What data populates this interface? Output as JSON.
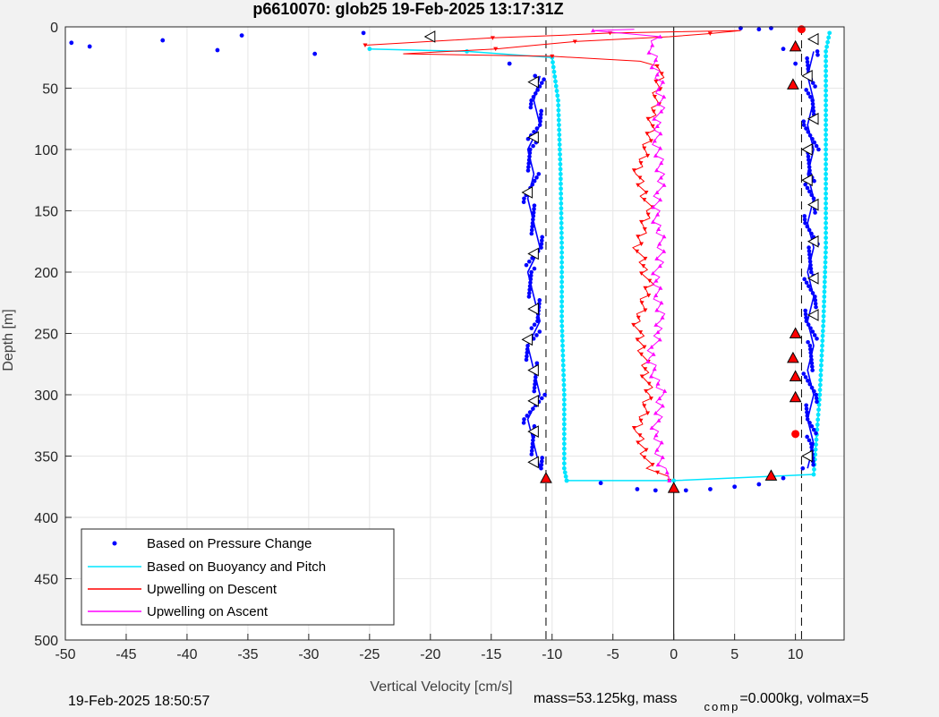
{
  "footer": {
    "timestamp": "19-Feb-2025 18:50:57",
    "mass_text": "mass=53.125kg, mass",
    "comp_sub": "comp",
    "comp_text": "=0.000kg, volmax=5"
  },
  "chart_data": {
    "type": "scatter",
    "title": "p6610070: glob25 19-Feb-2025 13:17:31Z",
    "xlabel": "Vertical Velocity [cm/s]",
    "ylabel": "Depth [m]",
    "xlim": [
      -50,
      14
    ],
    "ylim": [
      500,
      0
    ],
    "y_reversed": true,
    "grid": true,
    "xticks": [
      -50,
      -45,
      -40,
      -35,
      -30,
      -25,
      -20,
      -15,
      -10,
      -5,
      0,
      5,
      10
    ],
    "yticks": [
      0,
      50,
      100,
      150,
      200,
      250,
      300,
      350,
      400,
      450,
      500
    ],
    "reference_lines": [
      {
        "x": -10.5,
        "style": "dashed",
        "color": "#000000"
      },
      {
        "x": 10.5,
        "style": "dashed",
        "color": "#000000"
      },
      {
        "x": 0,
        "style": "solid",
        "color": "#000000"
      }
    ],
    "legend_position": "bottom-left",
    "series": [
      {
        "name": "Based on Pressure Change",
        "color": "#0000ff",
        "style": "dots",
        "descent": [
          [
            -11,
            40
          ],
          [
            -11.5,
            60
          ],
          [
            -11,
            80
          ],
          [
            -12,
            100
          ],
          [
            -11.5,
            120
          ],
          [
            -12,
            140
          ],
          [
            -11.5,
            160
          ],
          [
            -11,
            180
          ],
          [
            -12,
            200
          ],
          [
            -11.5,
            220
          ],
          [
            -11,
            240
          ],
          [
            -12,
            260
          ],
          [
            -11.5,
            280
          ],
          [
            -11,
            300
          ],
          [
            -12,
            320
          ],
          [
            -11.5,
            340
          ],
          [
            -11,
            360
          ]
        ],
        "ascent": [
          [
            11,
            360
          ],
          [
            11.5,
            340
          ],
          [
            11,
            320
          ],
          [
            11.5,
            300
          ],
          [
            11,
            280
          ],
          [
            11.5,
            260
          ],
          [
            11,
            240
          ],
          [
            11.5,
            220
          ],
          [
            11,
            200
          ],
          [
            11.5,
            180
          ],
          [
            11,
            160
          ],
          [
            11.5,
            140
          ],
          [
            11,
            120
          ],
          [
            11.5,
            100
          ],
          [
            11,
            80
          ],
          [
            11.5,
            60
          ],
          [
            11,
            40
          ],
          [
            11.5,
            20
          ]
        ],
        "outliers": [
          [
            -49.5,
            13
          ],
          [
            -48,
            16
          ],
          [
            -42,
            11
          ],
          [
            -37.5,
            19
          ],
          [
            -35.5,
            7
          ],
          [
            -29.5,
            22
          ],
          [
            -25.5,
            5
          ],
          [
            -13.5,
            30
          ],
          [
            -6,
            372
          ],
          [
            -3,
            377
          ],
          [
            -1.5,
            378
          ],
          [
            1,
            378
          ],
          [
            3,
            377
          ],
          [
            5,
            375
          ],
          [
            7,
            373
          ],
          [
            9,
            368
          ],
          [
            5.5,
            1
          ],
          [
            7,
            2
          ],
          [
            8,
            1
          ],
          [
            10,
            30
          ],
          [
            9,
            18
          ]
        ]
      },
      {
        "name": "Based on Buoyancy and Pitch",
        "color": "#00e5ff",
        "style": "line-dots",
        "descent": [
          [
            -25,
            18
          ],
          [
            -17,
            20
          ],
          [
            -10,
            25
          ],
          [
            -9.5,
            60
          ],
          [
            -9.3,
            120
          ],
          [
            -9.2,
            180
          ],
          [
            -9.2,
            240
          ],
          [
            -9,
            300
          ],
          [
            -9,
            360
          ],
          [
            -8.8,
            370
          ]
        ],
        "ascent": [
          [
            -8.8,
            370
          ],
          [
            0,
            370
          ],
          [
            11.5,
            365
          ],
          [
            12,
            300
          ],
          [
            12.3,
            240
          ],
          [
            12.5,
            180
          ],
          [
            12.5,
            120
          ],
          [
            12.5,
            60
          ],
          [
            12.5,
            20
          ],
          [
            12.8,
            5
          ]
        ]
      },
      {
        "name": "Upwelling on Descent",
        "color": "#ff0000",
        "style": "line-triangles",
        "points": [
          [
            -25,
            15
          ],
          [
            -20,
            12
          ],
          [
            -15,
            9
          ],
          [
            -10,
            7
          ],
          [
            -5,
            5
          ],
          [
            5.5,
            3
          ],
          [
            0,
            8
          ],
          [
            -8,
            12
          ],
          [
            -15,
            18
          ],
          [
            -22,
            22
          ],
          [
            -10,
            24
          ],
          [
            -3,
            28
          ],
          [
            -1,
            32
          ],
          [
            -1.5,
            60
          ],
          [
            -2,
            90
          ],
          [
            -3,
            120
          ],
          [
            -2,
            150
          ],
          [
            -3,
            180
          ],
          [
            -2,
            210
          ],
          [
            -3,
            240
          ],
          [
            -2.5,
            270
          ],
          [
            -2,
            300
          ],
          [
            -3,
            330
          ],
          [
            -2,
            360
          ],
          [
            0,
            370
          ]
        ]
      },
      {
        "name": "Upwelling on Ascent",
        "color": "#ff00ff",
        "style": "line-triangles",
        "points": [
          [
            0,
            370
          ],
          [
            -1,
            360
          ],
          [
            -1.5,
            330
          ],
          [
            -1,
            300
          ],
          [
            -2,
            270
          ],
          [
            -1,
            240
          ],
          [
            -1.5,
            210
          ],
          [
            -1,
            180
          ],
          [
            -1.5,
            150
          ],
          [
            -1,
            120
          ],
          [
            -1.5,
            90
          ],
          [
            -1,
            60
          ],
          [
            -1.5,
            30
          ],
          [
            -2,
            15
          ],
          [
            -1,
            8
          ],
          [
            -7,
            3
          ],
          [
            -3,
            2
          ]
        ]
      }
    ],
    "markers": {
      "black_triangles": [
        [
          -20,
          8
        ],
        [
          -11.5,
          45
        ],
        [
          -11.5,
          90
        ],
        [
          -12,
          135
        ],
        [
          -11.5,
          185
        ],
        [
          -11.5,
          230
        ],
        [
          -12,
          255
        ],
        [
          -11.5,
          280
        ],
        [
          -11.5,
          305
        ],
        [
          -11.5,
          330
        ],
        [
          -11.5,
          355
        ],
        [
          11.5,
          10
        ],
        [
          11,
          40
        ],
        [
          11.5,
          75
        ],
        [
          11,
          100
        ],
        [
          11,
          125
        ],
        [
          11.5,
          145
        ],
        [
          11.5,
          175
        ],
        [
          11.5,
          205
        ],
        [
          11.5,
          235
        ],
        [
          11,
          350
        ]
      ],
      "red_triangles": [
        [
          -10.5,
          368
        ],
        [
          0,
          376
        ],
        [
          8,
          366
        ],
        [
          10,
          16
        ],
        [
          9.8,
          47
        ],
        [
          10,
          250
        ],
        [
          9.8,
          270
        ],
        [
          10,
          285
        ],
        [
          10,
          302
        ]
      ],
      "red_circles": [
        [
          10.5,
          2
        ],
        [
          10,
          332
        ]
      ]
    }
  }
}
